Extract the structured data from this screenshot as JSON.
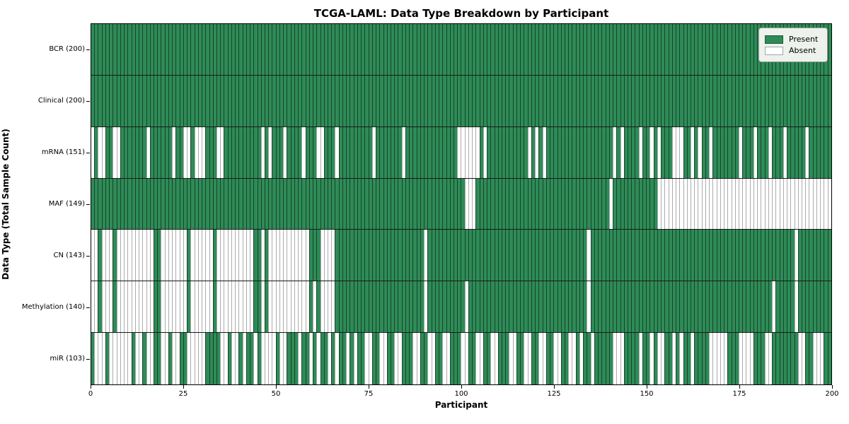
{
  "chart_data": {
    "type": "heatmap",
    "title": "TCGA-LAML: Data Type Breakdown by Participant",
    "xlabel": "Participant",
    "ylabel": "Data Type (Total Sample Count)",
    "x_range": [
      0,
      200
    ],
    "x_ticks": [
      0,
      25,
      50,
      75,
      100,
      125,
      150,
      175,
      200
    ],
    "n_participants": 200,
    "grid": false,
    "legend": {
      "position": "upper right",
      "entries": [
        {
          "label": "Present",
          "color": "#2e8b57"
        },
        {
          "label": "Absent",
          "color": "#ffffff"
        }
      ]
    },
    "rows": [
      {
        "label": "BCR (200)",
        "data_type": "BCR",
        "present_count": 200,
        "absent_ranges": []
      },
      {
        "label": "Clinical (200)",
        "data_type": "Clinical",
        "present_count": 200,
        "absent_ranges": []
      },
      {
        "label": "mRNA (151)",
        "data_type": "mRNA",
        "present_count": 151,
        "absent_ranges": [
          [
            0,
            0
          ],
          [
            2,
            3
          ],
          [
            6,
            7
          ],
          [
            15,
            15
          ],
          [
            22,
            22
          ],
          [
            25,
            26
          ],
          [
            28,
            30
          ],
          [
            34,
            35
          ],
          [
            46,
            46
          ],
          [
            48,
            48
          ],
          [
            52,
            52
          ],
          [
            57,
            57
          ],
          [
            61,
            62
          ],
          [
            66,
            66
          ],
          [
            76,
            76
          ],
          [
            84,
            84
          ],
          [
            99,
            104
          ],
          [
            106,
            106
          ],
          [
            118,
            118
          ],
          [
            120,
            120
          ],
          [
            122,
            122
          ],
          [
            141,
            141
          ],
          [
            143,
            143
          ],
          [
            148,
            148
          ],
          [
            151,
            151
          ],
          [
            153,
            153
          ],
          [
            157,
            159
          ],
          [
            162,
            162
          ],
          [
            164,
            164
          ],
          [
            167,
            167
          ],
          [
            175,
            175
          ],
          [
            179,
            179
          ],
          [
            183,
            183
          ],
          [
            187,
            187
          ],
          [
            193,
            193
          ]
        ]
      },
      {
        "label": "MAF (149)",
        "data_type": "MAF",
        "present_count": 149,
        "absent_ranges": [
          [
            101,
            103
          ],
          [
            140,
            140
          ],
          [
            153,
            199
          ]
        ]
      },
      {
        "label": "CN (143)",
        "data_type": "CN",
        "present_count": 143,
        "absent_ranges": [
          [
            0,
            1
          ],
          [
            3,
            5
          ],
          [
            7,
            16
          ],
          [
            19,
            25
          ],
          [
            27,
            32
          ],
          [
            34,
            43
          ],
          [
            46,
            46
          ],
          [
            48,
            58
          ],
          [
            62,
            65
          ],
          [
            90,
            90
          ],
          [
            134,
            134
          ],
          [
            190,
            190
          ]
        ]
      },
      {
        "label": "Methylation (140)",
        "data_type": "Methylation",
        "present_count": 140,
        "absent_ranges": [
          [
            0,
            1
          ],
          [
            3,
            5
          ],
          [
            7,
            16
          ],
          [
            19,
            25
          ],
          [
            27,
            32
          ],
          [
            34,
            43
          ],
          [
            46,
            46
          ],
          [
            48,
            58
          ],
          [
            60,
            60
          ],
          [
            62,
            65
          ],
          [
            90,
            90
          ],
          [
            101,
            101
          ],
          [
            134,
            134
          ],
          [
            184,
            184
          ],
          [
            190,
            190
          ]
        ]
      },
      {
        "label": "miR (103)",
        "data_type": "miR",
        "present_count": 103,
        "absent_ranges": [
          [
            1,
            3
          ],
          [
            5,
            10
          ],
          [
            12,
            13
          ],
          [
            15,
            16
          ],
          [
            19,
            20
          ],
          [
            22,
            23
          ],
          [
            26,
            30
          ],
          [
            35,
            36
          ],
          [
            38,
            39
          ],
          [
            41,
            41
          ],
          [
            44,
            44
          ],
          [
            46,
            49
          ],
          [
            51,
            52
          ],
          [
            56,
            56
          ],
          [
            59,
            59
          ],
          [
            61,
            61
          ],
          [
            64,
            64
          ],
          [
            66,
            66
          ],
          [
            69,
            69
          ],
          [
            71,
            71
          ],
          [
            74,
            75
          ],
          [
            78,
            79
          ],
          [
            82,
            83
          ],
          [
            87,
            88
          ],
          [
            91,
            92
          ],
          [
            95,
            96
          ],
          [
            100,
            101
          ],
          [
            104,
            105
          ],
          [
            108,
            109
          ],
          [
            113,
            114
          ],
          [
            117,
            118
          ],
          [
            121,
            122
          ],
          [
            125,
            126
          ],
          [
            129,
            130
          ],
          [
            132,
            132
          ],
          [
            135,
            135
          ],
          [
            141,
            143
          ],
          [
            148,
            148
          ],
          [
            151,
            151
          ],
          [
            153,
            154
          ],
          [
            157,
            157
          ],
          [
            159,
            159
          ],
          [
            162,
            162
          ],
          [
            167,
            171
          ],
          [
            175,
            178
          ],
          [
            182,
            183
          ],
          [
            191,
            192
          ],
          [
            195,
            197
          ]
        ]
      }
    ]
  },
  "colors": {
    "present": "#2e8b57",
    "absent": "#ffffff",
    "present_cell_border": "rgba(0,0,0,0.50)",
    "absent_cell_border": "#ababab",
    "row_separator": "#1a1a1a",
    "axis": "#000000",
    "legend_background": "#edf2ed",
    "legend_border": "#9a9a9a"
  }
}
